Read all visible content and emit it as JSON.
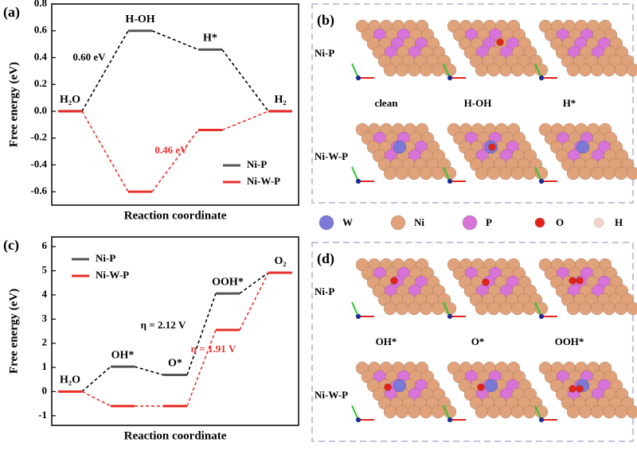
{
  "chart_data": [
    {
      "type": "energy_profile",
      "label": "(a)",
      "xlabel": "Reaction coordinate",
      "ylabel": "Free energy (eV)",
      "categories": [
        "H₂O",
        "H-OH",
        "H*",
        "H₂"
      ],
      "series": [
        {
          "name": "Ni-P",
          "color": "#555555",
          "values": [
            0,
            0.6,
            0.46,
            0
          ]
        },
        {
          "name": "Ni-W-P",
          "color": "#e8302a",
          "values": [
            0,
            -0.6,
            -0.14,
            0
          ]
        }
      ],
      "annotations": [
        {
          "text": "0.60 eV",
          "color": "#000000"
        },
        {
          "text": "0.46 eV",
          "color": "#e8302a"
        }
      ],
      "ylim": [
        -0.7,
        0.8
      ],
      "yticks": [
        -0.6,
        -0.4,
        -0.2,
        0.0,
        0.2,
        0.4,
        0.6,
        0.8
      ],
      "legend": "lower right"
    },
    {
      "type": "energy_profile",
      "label": "(c)",
      "xlabel": "Reaction coordinate",
      "ylabel": "Free energy (eV)",
      "categories": [
        "H₂O",
        "OH*",
        "O*",
        "OOH*",
        "O₂"
      ],
      "series": [
        {
          "name": "Ni-P",
          "color": "#555555",
          "values": [
            0,
            1.03,
            0.69,
            4.06,
            4.92
          ]
        },
        {
          "name": "Ni-W-P",
          "color": "#e8302a",
          "values": [
            0,
            -0.6,
            -0.6,
            2.55,
            4.92
          ]
        }
      ],
      "annotations": [
        {
          "text": "η = 2.12 V",
          "color": "#000000"
        },
        {
          "text": "η = 1.91 V",
          "color": "#e8302a"
        }
      ],
      "ylim": [
        -1.4,
        6.4
      ],
      "yticks": [
        -1,
        0,
        1,
        2,
        3,
        4,
        5,
        6
      ],
      "legend": "upper left"
    }
  ],
  "panels": [
    {
      "label": "(b)",
      "rows": [
        "Ni-P",
        "Ni-W-P"
      ],
      "captions": [
        "clean",
        "H-OH",
        "H*"
      ]
    },
    {
      "label": "(d)",
      "rows": [
        "Ni-P",
        "Ni-W-P"
      ],
      "captions": [
        "OH*",
        "O*",
        "OOH*"
      ]
    }
  ],
  "elements": [
    "W",
    "Ni",
    "P",
    "O",
    "H"
  ]
}
